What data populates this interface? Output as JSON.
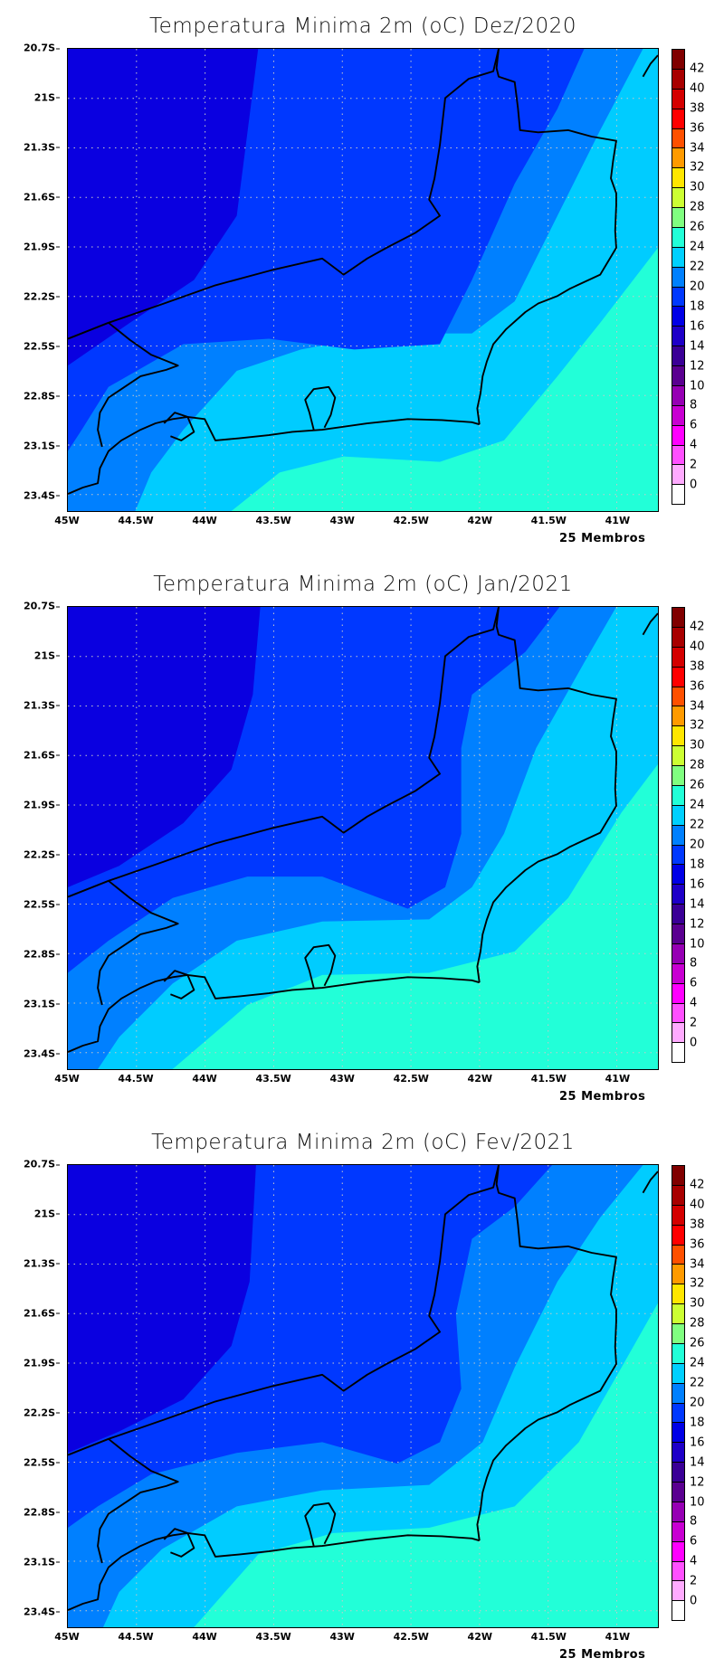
{
  "panels": [
    {
      "title": "Temperatura Minima 2m (oC) Dez/2020",
      "footer": "25 Membros"
    },
    {
      "title": "Temperatura Minima 2m (oC) Jan/2021",
      "footer": "25 Membros"
    },
    {
      "title": "Temperatura Minima 2m (oC) Fev/2021",
      "footer": "25 Membros"
    }
  ],
  "axes": {
    "lat_range": [
      20.7,
      23.5
    ],
    "lon_range": [
      -45,
      -40.7
    ],
    "lat_ticks": [
      {
        "value": 20.7,
        "label": "20.7S"
      },
      {
        "value": 21.0,
        "label": "21S"
      },
      {
        "value": 21.3,
        "label": "21.3S"
      },
      {
        "value": 21.6,
        "label": "21.6S"
      },
      {
        "value": 21.9,
        "label": "21.9S"
      },
      {
        "value": 22.2,
        "label": "22.2S"
      },
      {
        "value": 22.5,
        "label": "22.5S"
      },
      {
        "value": 22.8,
        "label": "22.8S"
      },
      {
        "value": 23.1,
        "label": "23.1S"
      },
      {
        "value": 23.4,
        "label": "23.4S"
      }
    ],
    "lon_ticks": [
      {
        "value": -45,
        "label": "45W"
      },
      {
        "value": -44.5,
        "label": "44.5W"
      },
      {
        "value": -44,
        "label": "44W"
      },
      {
        "value": -43.5,
        "label": "43.5W"
      },
      {
        "value": -43,
        "label": "43W"
      },
      {
        "value": -42.5,
        "label": "42.5W"
      },
      {
        "value": -42,
        "label": "42W"
      },
      {
        "value": -41.5,
        "label": "41.5W"
      },
      {
        "value": -41,
        "label": "41W"
      }
    ]
  },
  "colorbar": {
    "labels": [
      "42",
      "40",
      "38",
      "36",
      "34",
      "32",
      "30",
      "28",
      "26",
      "24",
      "22",
      "20",
      "18",
      "16",
      "14",
      "12",
      "10",
      "8",
      "6",
      "4",
      "2",
      "0"
    ],
    "colors": [
      "#800000",
      "#a80000",
      "#d40000",
      "#ff0000",
      "#ff5000",
      "#ff9a00",
      "#ffe600",
      "#ccff33",
      "#80ff80",
      "#22ffd8",
      "#00d0ff",
      "#0080ff",
      "#0038ff",
      "#0000e6",
      "#1e00c8",
      "#3a0096",
      "#5a0090",
      "#9600b4",
      "#c800d2",
      "#ff00ff",
      "#ff50ff",
      "#ffaaff",
      "#ffffff"
    ]
  },
  "map_colors": {
    "t24_26": "#22ffd8",
    "t22_24": "#00ccff",
    "t20_22": "#0080ff",
    "t18_20": "#0038ff",
    "t16_18": "#0a00e0",
    "coast": "#000000",
    "grid": "#c8c8c8"
  }
}
